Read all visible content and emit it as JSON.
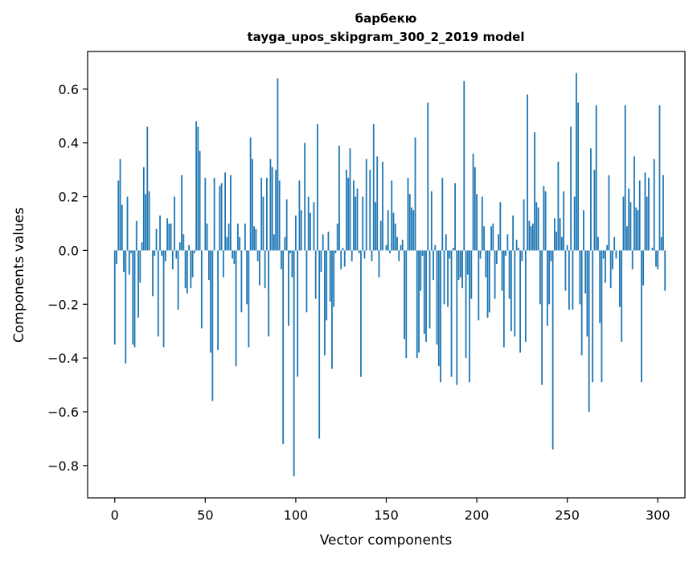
{
  "chart_data": {
    "type": "bar",
    "title": "барбекю",
    "subtitle": "tayga_upos_skipgram_300_2_2019 model",
    "xlabel": "Vector components",
    "ylabel": "Components values",
    "xlim": [
      -15,
      315
    ],
    "ylim": [
      -0.92,
      0.74
    ],
    "xticks": [
      0,
      50,
      100,
      150,
      200,
      250,
      300
    ],
    "yticks": [
      -0.8,
      -0.6,
      -0.4,
      -0.2,
      0.0,
      0.2,
      0.4,
      0.6
    ],
    "xtick_labels": [
      "0",
      "50",
      "100",
      "150",
      "200",
      "250",
      "300"
    ],
    "ytick_labels": [
      "−0.8",
      "−0.6",
      "−0.4",
      "−0.2",
      "0.0",
      "0.2",
      "0.4",
      "0.6"
    ],
    "bar_color": "#1f77b4",
    "grid": false,
    "values": [
      -0.35,
      -0.05,
      0.26,
      0.34,
      0.17,
      -0.08,
      -0.42,
      0.2,
      -0.09,
      -0.01,
      -0.35,
      -0.36,
      0.11,
      -0.25,
      -0.12,
      0.03,
      0.31,
      0.21,
      0.46,
      0.22,
      0.0,
      -0.17,
      -0.02,
      0.08,
      -0.32,
      0.13,
      -0.02,
      -0.36,
      -0.04,
      0.12,
      0.1,
      0.1,
      -0.07,
      0.2,
      -0.03,
      -0.22,
      0.03,
      0.28,
      0.06,
      -0.14,
      -0.16,
      0.02,
      -0.14,
      -0.1,
      -0.01,
      0.48,
      0.46,
      0.37,
      -0.29,
      0.0,
      0.27,
      0.1,
      -0.11,
      -0.38,
      -0.56,
      0.27,
      0.0,
      -0.37,
      0.24,
      0.25,
      -0.1,
      0.29,
      0.05,
      0.1,
      0.28,
      -0.03,
      -0.05,
      -0.43,
      0.1,
      0.05,
      -0.23,
      0.0,
      0.1,
      -0.2,
      -0.36,
      0.42,
      0.34,
      0.09,
      0.08,
      -0.04,
      -0.13,
      0.27,
      0.2,
      -0.14,
      0.27,
      -0.32,
      0.34,
      0.31,
      0.06,
      0.3,
      0.64,
      0.26,
      -0.07,
      -0.72,
      0.05,
      0.19,
      -0.28,
      -0.01,
      -0.1,
      -0.84,
      0.13,
      -0.47,
      0.26,
      0.15,
      0.0,
      0.4,
      -0.23,
      0.2,
      0.14,
      0.0,
      0.18,
      -0.18,
      0.47,
      -0.7,
      -0.08,
      0.06,
      -0.39,
      -0.26,
      0.07,
      -0.19,
      -0.44,
      -0.21,
      -0.01,
      0.1,
      0.39,
      -0.07,
      0.01,
      -0.06,
      0.3,
      0.27,
      0.38,
      -0.04,
      0.26,
      0.2,
      0.23,
      -0.01,
      -0.47,
      0.2,
      -0.03,
      0.34,
      0.0,
      0.3,
      -0.04,
      0.47,
      0.18,
      0.35,
      -0.1,
      0.11,
      0.33,
      0.0,
      0.02,
      0.15,
      -0.01,
      0.26,
      0.14,
      0.1,
      0.05,
      -0.04,
      0.02,
      0.04,
      -0.33,
      -0.4,
      0.27,
      0.21,
      0.16,
      0.15,
      0.42,
      -0.4,
      -0.38,
      -0.15,
      -0.02,
      -0.31,
      -0.34,
      0.55,
      -0.29,
      0.22,
      -0.11,
      0.02,
      -0.35,
      -0.43,
      -0.49,
      0.27,
      -0.2,
      0.06,
      -0.21,
      -0.03,
      -0.47,
      0.01,
      0.25,
      -0.5,
      -0.11,
      -0.1,
      -0.14,
      0.63,
      -0.4,
      -0.09,
      -0.49,
      -0.18,
      0.36,
      0.31,
      0.21,
      -0.26,
      -0.03,
      0.2,
      0.09,
      -0.1,
      -0.25,
      -0.23,
      0.09,
      0.1,
      -0.18,
      -0.05,
      0.06,
      0.18,
      -0.15,
      -0.36,
      -0.02,
      0.06,
      -0.18,
      -0.3,
      0.13,
      -0.32,
      0.04,
      0.01,
      -0.38,
      -0.04,
      0.19,
      -0.34,
      0.58,
      0.11,
      0.09,
      0.1,
      0.44,
      0.18,
      0.16,
      -0.2,
      -0.5,
      0.24,
      0.22,
      -0.28,
      -0.2,
      -0.04,
      -0.74,
      0.12,
      0.07,
      0.33,
      0.12,
      0.05,
      0.22,
      -0.15,
      0.02,
      -0.22,
      0.46,
      -0.22,
      0.2,
      0.66,
      0.55,
      -0.2,
      -0.39,
      0.15,
      -0.16,
      -0.32,
      -0.6,
      0.38,
      -0.49,
      0.3,
      0.54,
      0.05,
      -0.27,
      -0.49,
      -0.03,
      -0.12,
      0.02,
      0.28,
      -0.14,
      -0.07,
      0.05,
      -0.03,
      0.0,
      -0.21,
      -0.34,
      0.2,
      0.54,
      0.09,
      0.23,
      0.18,
      -0.07,
      0.35,
      0.16,
      0.15,
      0.26,
      -0.49,
      -0.13,
      0.29,
      0.2,
      0.27,
      0.0,
      0.01,
      0.34,
      -0.06,
      -0.07,
      0.54,
      0.05,
      0.28,
      -0.15
    ]
  }
}
